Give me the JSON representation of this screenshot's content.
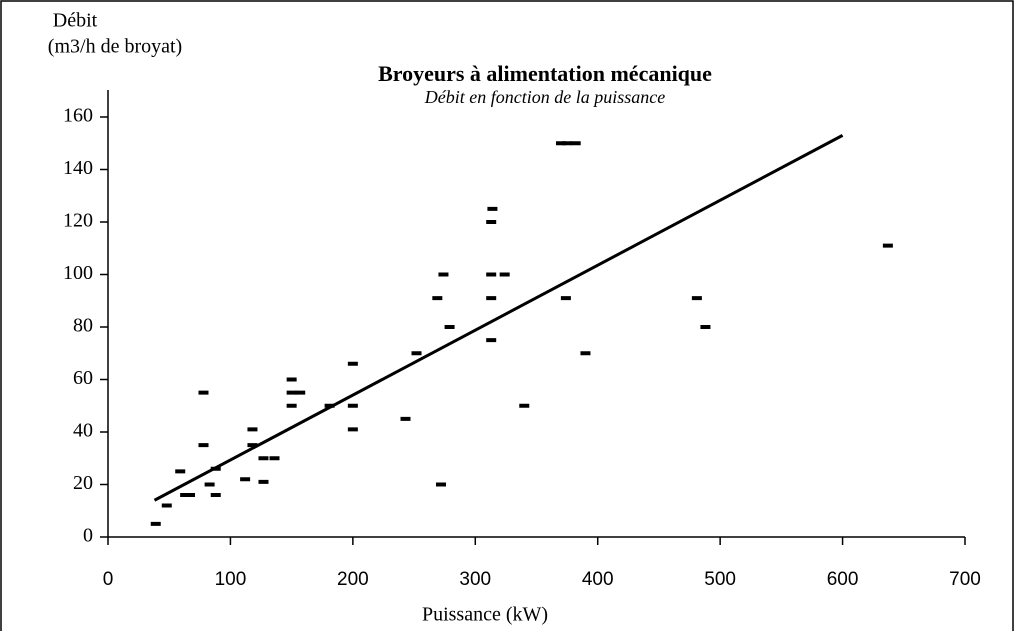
{
  "chart_data": {
    "type": "scatter",
    "title": "Broyeurs à  alimentation mécanique",
    "subtitle": "Débit en fonction de la puissance",
    "y_label": [
      "Débit",
      "(m3/h de broyat)"
    ],
    "x_label": "Puissance (kW)",
    "color": "#000000",
    "x": [
      39,
      48,
      59,
      63,
      67,
      78,
      78,
      83,
      88,
      88,
      112,
      118,
      118,
      127,
      136,
      127,
      150,
      150,
      150,
      157,
      181,
      200,
      200,
      200,
      243,
      252,
      269,
      274,
      272,
      279,
      313,
      314,
      313,
      313,
      313,
      324,
      340,
      370,
      375,
      382,
      374,
      390,
      481,
      488,
      637
    ],
    "values": [
      5,
      12,
      25,
      16,
      16,
      55,
      35,
      20,
      26,
      16,
      22,
      41,
      35,
      30,
      30,
      21,
      60,
      55,
      50,
      55,
      50,
      66,
      50,
      41,
      45,
      70,
      91,
      100,
      20,
      80,
      120,
      125,
      100,
      91,
      75,
      100,
      50,
      150,
      150,
      150,
      91,
      70,
      91,
      80,
      111
    ],
    "trendline": {
      "x": [
        38,
        600
      ],
      "y": [
        14,
        153
      ]
    },
    "xlim": [
      0,
      700
    ],
    "xticks": [
      0,
      100,
      200,
      300,
      400,
      500,
      600,
      700
    ],
    "ylim": [
      0,
      160
    ],
    "yticks": [
      0,
      20,
      40,
      60,
      80,
      100,
      120,
      140,
      160
    ]
  }
}
